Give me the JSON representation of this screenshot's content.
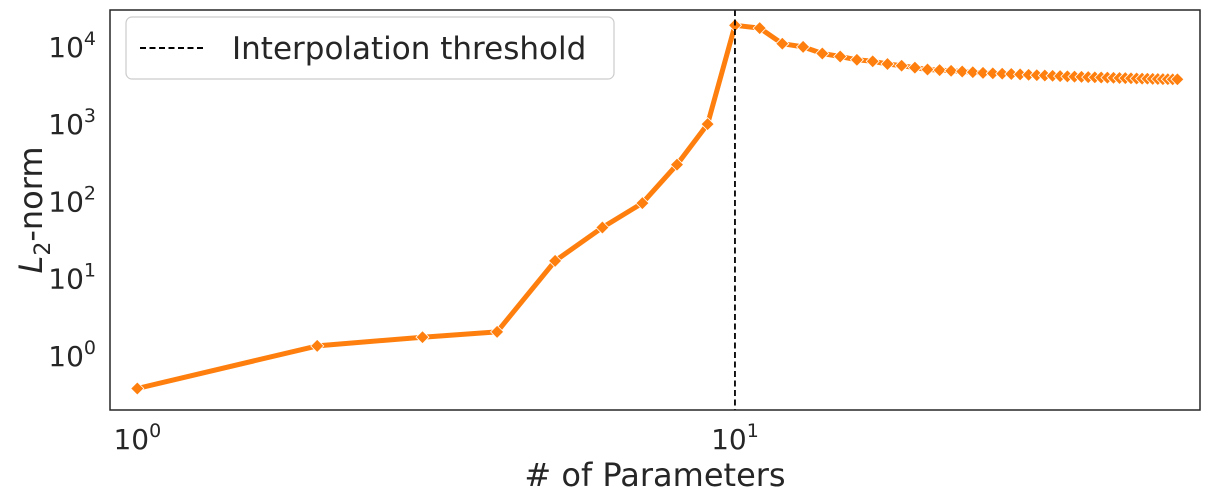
{
  "chart_data": {
    "type": "line",
    "xlabel": "# of Parameters",
    "ylabel_main": "L",
    "ylabel_sub": "2",
    "ylabel_rest": "-norm",
    "xscale": "log",
    "yscale": "log",
    "xlim": [
      0.9,
      60
    ],
    "ylim": [
      0.2,
      30000
    ],
    "grid": false,
    "legend_position": "top-left",
    "x_ticks": [
      {
        "base": "10",
        "exp": "0",
        "value": 1
      },
      {
        "base": "10",
        "exp": "1",
        "value": 10
      }
    ],
    "y_ticks": [
      {
        "base": "10",
        "exp": "0",
        "value": 1
      },
      {
        "base": "10",
        "exp": "1",
        "value": 10
      },
      {
        "base": "10",
        "exp": "2",
        "value": 100
      },
      {
        "base": "10",
        "exp": "3",
        "value": 1000
      },
      {
        "base": "10",
        "exp": "4",
        "value": 10000
      }
    ],
    "series": [
      {
        "color": "#ff7f0e",
        "marker": "diamond",
        "x": [
          1,
          2,
          3,
          4,
          5,
          6,
          7,
          8,
          9,
          10,
          11,
          12,
          13,
          14,
          15,
          16,
          17,
          18,
          19,
          20,
          21,
          22,
          23,
          24,
          25,
          26,
          27,
          28,
          29,
          30,
          31,
          32,
          33,
          34,
          35,
          36,
          37,
          38,
          39,
          40,
          41,
          42,
          43,
          44,
          45,
          46,
          47,
          48,
          49,
          50,
          51,
          52,
          53,
          54,
          55
        ],
        "y": [
          0.38,
          1.35,
          1.75,
          2.05,
          17,
          46,
          95,
          300,
          1000,
          19000,
          17500,
          11000,
          10000,
          8200,
          7500,
          6800,
          6500,
          6000,
          5700,
          5400,
          5100,
          5000,
          4900,
          4800,
          4700,
          4600,
          4550,
          4500,
          4450,
          4400,
          4350,
          4300,
          4260,
          4220,
          4180,
          4150,
          4120,
          4090,
          4060,
          4040,
          4020,
          4000,
          3980,
          3960,
          3940,
          3920,
          3900,
          3885,
          3870,
          3855,
          3840,
          3830,
          3820,
          3810,
          3800
        ]
      }
    ],
    "vline": {
      "x": 10,
      "label": "Interpolation threshold",
      "color": "#000000",
      "style": "dashed"
    }
  }
}
